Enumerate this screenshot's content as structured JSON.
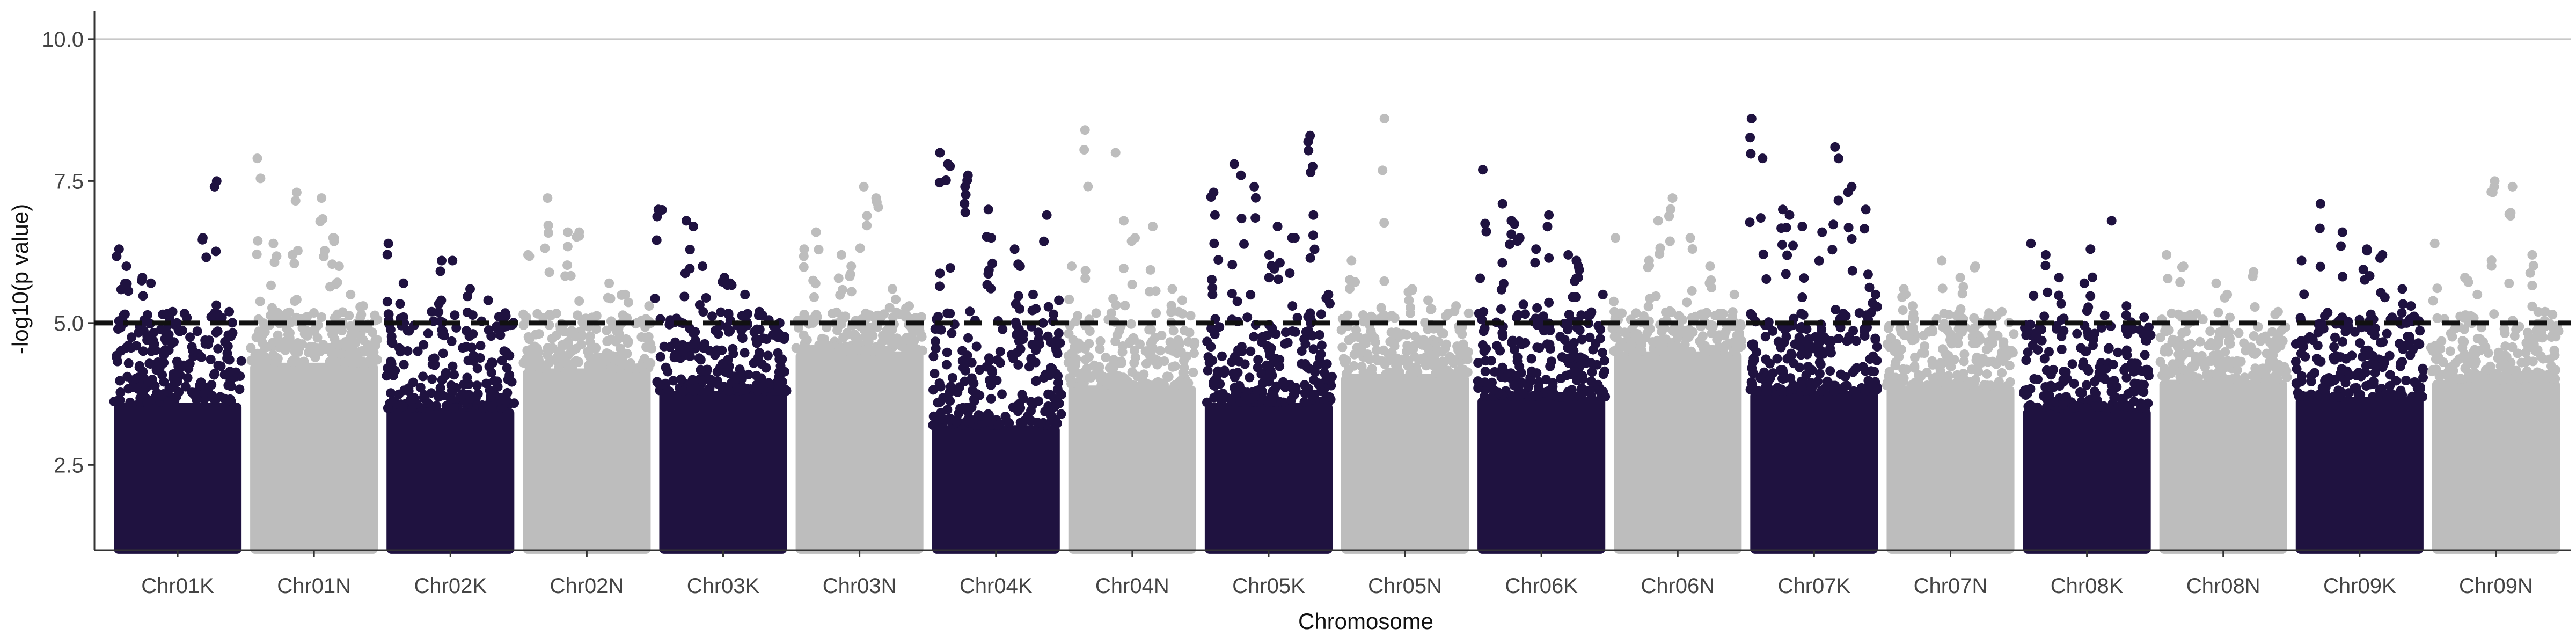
{
  "chart_data": {
    "type": "scatter",
    "subtype": "manhattan",
    "xlabel": "Chromosome",
    "ylabel": "-log10(p value)",
    "ylim": [
      1.0,
      10.5
    ],
    "yticks": [
      2.5,
      5.0,
      7.5,
      10.0
    ],
    "ytick_labels": [
      "2.5",
      "5.0",
      "7.5",
      "10.0"
    ],
    "threshold": 5.0,
    "threshold_style": "dashed",
    "grid": "horizontal line at 10.0 only",
    "legend": "none",
    "colors": {
      "dark": "#1f1240",
      "light": "#bdbdbd",
      "threshold": "#111111"
    },
    "categories": [
      "Chr01K",
      "Chr01N",
      "Chr02K",
      "Chr02N",
      "Chr03K",
      "Chr03N",
      "Chr04K",
      "Chr04N",
      "Chr05K",
      "Chr05N",
      "Chr06K",
      "Chr06N",
      "Chr07K",
      "Chr07N",
      "Chr08K",
      "Chr08N",
      "Chr09K",
      "Chr09N"
    ],
    "chromosomes": [
      {
        "name": "Chr01K",
        "color": "dark",
        "bulk_top": 3.6,
        "top_points": [
          6.3,
          6.0,
          5.8,
          5.7,
          5.2,
          5.0,
          6.5,
          7.5,
          7.4,
          5.2
        ]
      },
      {
        "name": "Chr01N",
        "color": "light",
        "bulk_top": 4.3,
        "top_points": [
          7.9,
          6.4,
          6.2,
          7.3,
          7.2,
          6.5,
          6.0,
          5.5,
          5.3
        ]
      },
      {
        "name": "Chr02K",
        "color": "dark",
        "bulk_top": 3.5,
        "top_points": [
          6.4,
          5.7,
          5.2,
          6.1,
          6.1,
          5.6,
          5.4,
          5.0
        ]
      },
      {
        "name": "Chr02N",
        "color": "light",
        "bulk_top": 4.2,
        "top_points": [
          6.2,
          7.2,
          6.6,
          6.6,
          5.7,
          5.5,
          5.3
        ]
      },
      {
        "name": "Chr03K",
        "color": "dark",
        "bulk_top": 3.8,
        "top_points": [
          7.0,
          6.8,
          6.7,
          6.0,
          5.8,
          5.7,
          5.5,
          5.2,
          5.0
        ]
      },
      {
        "name": "Chr03N",
        "color": "light",
        "bulk_top": 4.5,
        "top_points": [
          6.3,
          6.6,
          6.2,
          6.0,
          7.4,
          7.2,
          5.6,
          5.3
        ]
      },
      {
        "name": "Chr04K",
        "color": "dark",
        "bulk_top": 3.2,
        "top_points": [
          8.0,
          7.8,
          7.6,
          7.4,
          7.0,
          6.5,
          6.3,
          6.0,
          5.5,
          6.9,
          5.4
        ]
      },
      {
        "name": "Chr04N",
        "color": "light",
        "bulk_top": 3.9,
        "top_points": [
          6.0,
          8.4,
          8.0,
          6.8,
          6.5,
          6.7,
          5.6,
          5.4
        ]
      },
      {
        "name": "Chr05K",
        "color": "dark",
        "bulk_top": 3.6,
        "top_points": [
          7.3,
          6.9,
          7.8,
          7.6,
          7.4,
          6.2,
          5.8,
          6.7,
          6.5,
          8.3,
          6.9,
          5.5
        ]
      },
      {
        "name": "Chr05N",
        "color": "light",
        "bulk_top": 4.1,
        "top_points": [
          6.1,
          8.6,
          5.6,
          5.4,
          5.3
        ]
      },
      {
        "name": "Chr06K",
        "color": "dark",
        "bulk_top": 3.7,
        "top_points": [
          7.7,
          7.1,
          6.8,
          6.5,
          6.3,
          6.9,
          6.2,
          6.1,
          6.0,
          5.5
        ]
      },
      {
        "name": "Chr06N",
        "color": "light",
        "bulk_top": 4.5,
        "top_points": [
          6.5,
          6.1,
          6.8,
          7.2,
          6.5,
          6.0,
          5.5
        ]
      },
      {
        "name": "Chr07K",
        "color": "dark",
        "bulk_top": 3.8,
        "top_points": [
          8.6,
          7.9,
          7.0,
          6.9,
          6.7,
          6.6,
          8.1,
          7.4,
          7.0,
          5.5
        ]
      },
      {
        "name": "Chr07N",
        "color": "light",
        "bulk_top": 3.9,
        "top_points": [
          5.6,
          5.3,
          6.1,
          5.8,
          6.0,
          5.2
        ]
      },
      {
        "name": "Chr08K",
        "color": "dark",
        "bulk_top": 3.5,
        "top_points": [
          6.4,
          6.2,
          5.8,
          5.7,
          6.3,
          6.8,
          5.3,
          5.1
        ]
      },
      {
        "name": "Chr08N",
        "color": "light",
        "bulk_top": 4.0,
        "top_points": [
          6.2,
          6.0,
          5.7,
          5.5,
          5.9,
          5.2
        ]
      },
      {
        "name": "Chr09K",
        "color": "dark",
        "bulk_top": 3.7,
        "top_points": [
          6.1,
          7.1,
          6.6,
          6.3,
          6.2,
          5.6,
          5.3
        ]
      },
      {
        "name": "Chr09N",
        "color": "light",
        "bulk_top": 4.0,
        "top_points": [
          6.4,
          5.8,
          5.5,
          7.5,
          7.4,
          6.2,
          5.2
        ]
      }
    ]
  }
}
